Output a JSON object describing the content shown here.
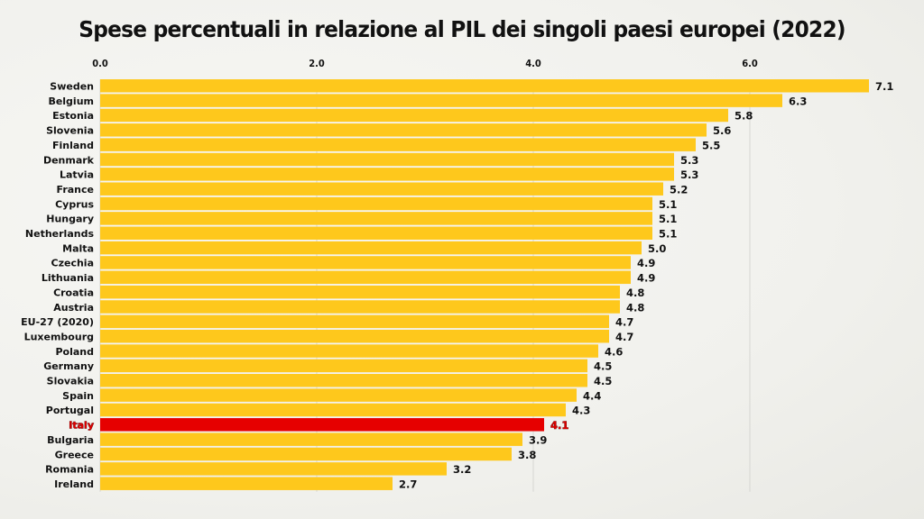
{
  "chart_data": {
    "type": "bar",
    "orientation": "horizontal",
    "title": "Spese percentuali in relazione al PIL dei singoli paesi europei (2022)",
    "xlabel": "",
    "ylabel": "",
    "xlim": [
      0,
      7.1
    ],
    "xticks": [
      "0.0",
      "2.0",
      "4.0",
      "6.0"
    ],
    "xtick_values": [
      0,
      2,
      4,
      6
    ],
    "tick_position": "top",
    "grid": true,
    "legend": "none",
    "categories": [
      "Sweden",
      "Belgium",
      "Estonia",
      "Slovenia",
      "Finland",
      "Denmark",
      "Latvia",
      "France",
      "Cyprus",
      "Hungary",
      "Netherlands",
      "Malta",
      "Czechia",
      "Lithuania",
      "Croatia",
      "Austria",
      "EU-27 (2020)",
      "Luxembourg",
      "Poland",
      "Germany",
      "Slovakia",
      "Spain",
      "Portugal",
      "Italy",
      "Bulgaria",
      "Greece",
      "Romania",
      "Ireland"
    ],
    "values": [
      7.1,
      6.3,
      5.8,
      5.6,
      5.5,
      5.3,
      5.3,
      5.2,
      5.1,
      5.1,
      5.1,
      5.0,
      4.9,
      4.9,
      4.8,
      4.8,
      4.7,
      4.7,
      4.6,
      4.5,
      4.5,
      4.4,
      4.3,
      4.1,
      3.9,
      3.8,
      3.2,
      2.7
    ],
    "value_labels": [
      "7.1",
      "6.3",
      "5.8",
      "5.6",
      "5.5",
      "5.3",
      "5.3",
      "5.2",
      "5.1",
      "5.1",
      "5.1",
      "5.0",
      "4.9",
      "4.9",
      "4.8",
      "4.8",
      "4.7",
      "4.7",
      "4.6",
      "4.5",
      "4.5",
      "4.4",
      "4.3",
      "4.1",
      "3.9",
      "3.8",
      "3.2",
      "2.7"
    ],
    "highlight": "Italy",
    "colors": {
      "bar": "#fec81c",
      "highlight": "#e60000",
      "grid": "#d6d6d2"
    }
  }
}
